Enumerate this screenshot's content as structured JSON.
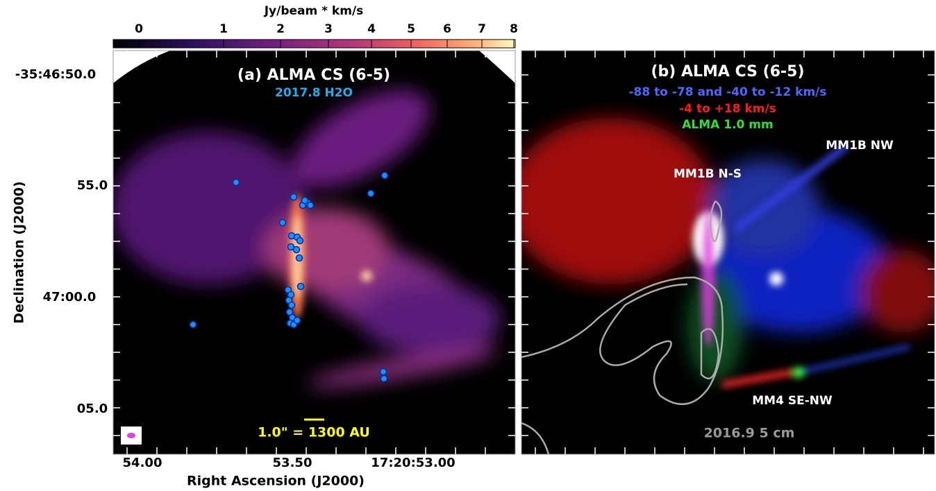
{
  "colorbar": {
    "label": "Jy/beam * km/s",
    "ticks": [
      "0",
      "1",
      "2",
      "3",
      "4",
      "5",
      "6",
      "7",
      "8"
    ]
  },
  "panels": [
    {
      "title": "(a) ALMA CS (6-5)",
      "subtitle": "2017.8 H2O",
      "scale_bar": "1.0\" = 1300 AU"
    },
    {
      "title": "(b) ALMA CS (6-5)",
      "legend": [
        "-88 to -78 and -40 to -12 km/s",
        "-4 to +18 km/s",
        "ALMA 1.0 mm"
      ],
      "labels": [
        "MM1B NW",
        "MM1B N-S",
        "MM4 SE-NW"
      ],
      "contour_label": "2016.9 5 cm"
    }
  ],
  "y_axis": {
    "label": "Declination (J2000)",
    "ticks": [
      "-35:46:50.0",
      "55.0",
      "47:00.0",
      "05.0"
    ]
  },
  "x_axis": {
    "label": "Right Ascension (J2000)",
    "ticks": [
      "54.00",
      "53.50",
      "17:20:53.00"
    ]
  }
}
